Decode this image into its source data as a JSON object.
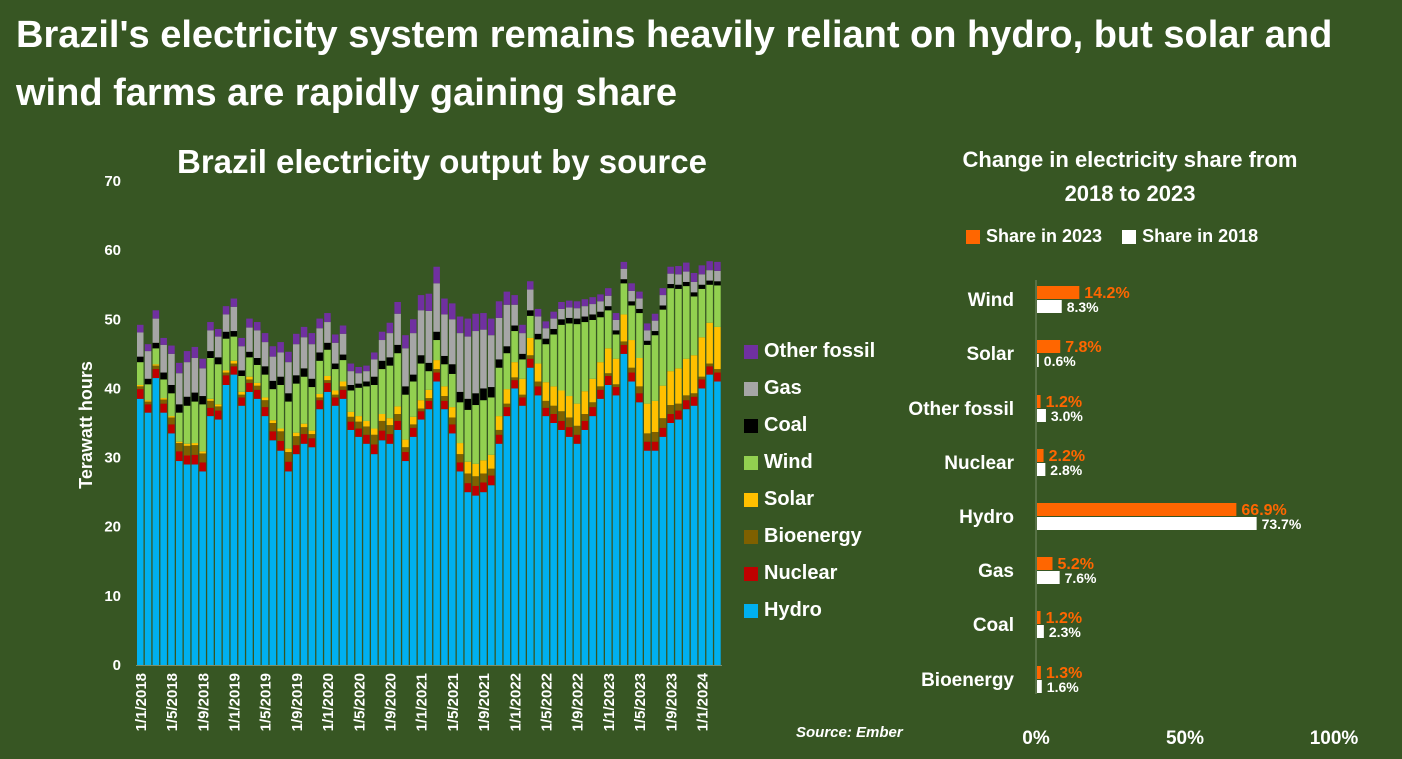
{
  "headline": "Brazil's electricity system remains heavily reliant on hydro, but solar and wind farms are rapidly gaining share",
  "source": "Source: Ember",
  "colors": {
    "background": "#375623",
    "Hydro": "#00b0f0",
    "Nuclear": "#c00000",
    "Bioenergy": "#7f6000",
    "Solar": "#ffc000",
    "Wind": "#92d050",
    "Coal": "#000000",
    "Gas": "#a6a6a6",
    "Other fossil": "#7030a0",
    "share_2023": "#ff6600",
    "share_2018": "#ffffff"
  },
  "chart_data": [
    {
      "type": "stacked-bar",
      "title": "Brazil electricity output by source",
      "xlabel": "",
      "ylabel": "Terawatt hours",
      "ylim": [
        0,
        70
      ],
      "yticks": [
        "0",
        "10",
        "20",
        "30",
        "40",
        "50",
        "60",
        "70"
      ],
      "x_tick_labels": [
        "1/1/2018",
        "1/5/2018",
        "1/9/2018",
        "1/1/2019",
        "1/5/2019",
        "1/9/2019",
        "1/1/2020",
        "1/5/2020",
        "1/9/2020",
        "1/1/2021",
        "1/5/2021",
        "1/9/2021",
        "1/1/2022",
        "1/5/2022",
        "1/9/2022",
        "1/1/2023",
        "1/5/2023",
        "1/9/2023",
        "1/1/2024"
      ],
      "legend": [
        "Other fossil",
        "Gas",
        "Coal",
        "Wind",
        "Solar",
        "Bioenergy",
        "Nuclear",
        "Hydro"
      ],
      "legend_position": "right",
      "months": [
        "2018-01",
        "2018-02",
        "2018-03",
        "2018-04",
        "2018-05",
        "2018-06",
        "2018-07",
        "2018-08",
        "2018-09",
        "2018-10",
        "2018-11",
        "2018-12",
        "2019-01",
        "2019-02",
        "2019-03",
        "2019-04",
        "2019-05",
        "2019-06",
        "2019-07",
        "2019-08",
        "2019-09",
        "2019-10",
        "2019-11",
        "2019-12",
        "2020-01",
        "2020-02",
        "2020-03",
        "2020-04",
        "2020-05",
        "2020-06",
        "2020-07",
        "2020-08",
        "2020-09",
        "2020-10",
        "2020-11",
        "2020-12",
        "2021-01",
        "2021-02",
        "2021-03",
        "2021-04",
        "2021-05",
        "2021-06",
        "2021-07",
        "2021-08",
        "2021-09",
        "2021-10",
        "2021-11",
        "2021-12",
        "2022-01",
        "2022-02",
        "2022-03",
        "2022-04",
        "2022-05",
        "2022-06",
        "2022-07",
        "2022-08",
        "2022-09",
        "2022-10",
        "2022-11",
        "2022-12",
        "2023-01",
        "2023-02",
        "2023-03",
        "2023-04",
        "2023-05",
        "2023-06",
        "2023-07",
        "2023-08",
        "2023-09",
        "2023-10",
        "2023-11",
        "2023-12",
        "2024-01",
        "2024-02",
        "2024-03"
      ],
      "series": [
        {
          "name": "Hydro",
          "values": [
            38.5,
            36.5,
            41.5,
            36.5,
            33.5,
            29.5,
            29.0,
            29.0,
            28.0,
            36.0,
            35.5,
            40.5,
            42.0,
            37.5,
            39.5,
            38.5,
            36.0,
            32.5,
            31.0,
            28.0,
            30.5,
            32.0,
            31.5,
            37.0,
            39.5,
            37.5,
            38.5,
            34.0,
            33.0,
            32.0,
            30.5,
            32.5,
            32.0,
            34.0,
            29.5,
            33.0,
            35.5,
            37.0,
            41.0,
            37.0,
            33.5,
            28.0,
            25.0,
            24.5,
            25.0,
            26.0,
            32.0,
            36.0,
            40.0,
            37.5,
            43.0,
            39.0,
            36.0,
            35.0,
            34.0,
            33.0,
            32.0,
            34.0,
            36.0,
            38.5,
            40.5,
            39.0,
            45.0,
            41.0,
            38.0,
            31.0,
            31.0,
            33.0,
            35.0,
            35.5,
            37.0,
            37.5,
            40.0,
            42.0,
            41.0
          ]
        },
        {
          "name": "Nuclear",
          "values": [
            1.4,
            1.2,
            1.3,
            1.3,
            1.3,
            1.4,
            1.3,
            1.4,
            1.3,
            1.2,
            1.3,
            1.4,
            1.2,
            1.2,
            1.3,
            1.3,
            1.3,
            1.3,
            1.4,
            1.4,
            1.3,
            1.4,
            1.3,
            1.3,
            1.3,
            1.2,
            1.3,
            1.2,
            1.2,
            1.3,
            1.4,
            1.4,
            1.4,
            1.3,
            1.3,
            1.3,
            1.2,
            1.2,
            1.3,
            1.2,
            1.3,
            1.3,
            1.3,
            1.4,
            1.4,
            1.4,
            1.3,
            1.3,
            1.2,
            1.2,
            1.3,
            1.3,
            1.2,
            1.3,
            1.3,
            1.4,
            1.3,
            1.3,
            1.3,
            1.3,
            1.3,
            1.2,
            1.3,
            1.3,
            1.3,
            1.3,
            1.3,
            1.3,
            1.3,
            1.3,
            1.3,
            1.3,
            1.3,
            1.2,
            1.3
          ]
        },
        {
          "name": "Bioenergy",
          "values": [
            0.4,
            0.4,
            0.5,
            0.6,
            1.0,
            1.2,
            1.4,
            1.4,
            1.3,
            1.0,
            0.6,
            0.4,
            0.4,
            0.4,
            0.5,
            0.6,
            1.0,
            1.2,
            1.4,
            1.4,
            1.3,
            1.0,
            0.6,
            0.4,
            0.4,
            0.4,
            0.5,
            0.7,
            1.0,
            1.2,
            1.4,
            1.4,
            1.3,
            1.0,
            0.7,
            0.5,
            0.4,
            0.4,
            0.5,
            0.7,
            1.0,
            1.2,
            1.4,
            1.4,
            1.3,
            1.0,
            0.7,
            0.5,
            0.4,
            0.4,
            0.5,
            0.7,
            1.0,
            1.2,
            1.4,
            1.4,
            1.3,
            1.0,
            0.7,
            0.5,
            0.4,
            0.4,
            0.5,
            0.7,
            1.0,
            1.2,
            1.4,
            1.4,
            1.3,
            1.0,
            0.7,
            0.5,
            0.4,
            0.4,
            0.5
          ]
        },
        {
          "name": "Solar",
          "values": [
            0.2,
            0.2,
            0.2,
            0.2,
            0.2,
            0.2,
            0.3,
            0.3,
            0.3,
            0.3,
            0.3,
            0.3,
            0.4,
            0.4,
            0.4,
            0.4,
            0.4,
            0.4,
            0.4,
            0.5,
            0.5,
            0.5,
            0.5,
            0.5,
            0.6,
            0.6,
            0.7,
            0.7,
            0.8,
            0.8,
            0.9,
            1.0,
            1.0,
            1.1,
            1.1,
            1.1,
            1.2,
            1.2,
            1.3,
            1.4,
            1.5,
            1.6,
            1.7,
            1.8,
            1.9,
            2.0,
            2.0,
            2.1,
            2.2,
            2.3,
            2.5,
            2.6,
            2.7,
            2.8,
            3.0,
            3.1,
            3.2,
            3.3,
            3.4,
            3.5,
            3.6,
            3.7,
            3.9,
            4.0,
            4.1,
            4.3,
            4.5,
            4.7,
            4.9,
            5.1,
            5.3,
            5.5,
            5.7,
            5.9,
            6.1
          ]
        },
        {
          "name": "Wind",
          "values": [
            3.3,
            2.3,
            2.3,
            2.7,
            3.3,
            4.2,
            5.5,
            6.0,
            6.8,
            5.9,
            5.8,
            4.6,
            3.5,
            2.3,
            2.8,
            2.6,
            3.3,
            4.5,
            6.3,
            6.8,
            7.1,
            6.8,
            6.3,
            4.8,
            3.8,
            3.1,
            3.1,
            3.1,
            4.1,
            5.0,
            6.3,
            6.5,
            7.6,
            7.7,
            6.5,
            5.1,
            5.3,
            2.7,
            2.9,
            3.2,
            4.8,
            5.9,
            7.5,
            8.5,
            8.7,
            8.3,
            7.0,
            5.2,
            4.5,
            2.8,
            3.2,
            3.5,
            5.5,
            7.5,
            9.5,
            10.5,
            11.5,
            10.0,
            8.5,
            6.5,
            5.5,
            3.5,
            4.5,
            5.0,
            6.5,
            8.5,
            9.5,
            11.0,
            12.0,
            11.5,
            10.5,
            8.5,
            7.0,
            5.5,
            6.0
          ]
        },
        {
          "name": "Coal",
          "values": [
            0.8,
            0.8,
            0.8,
            1.0,
            1.2,
            1.2,
            1.3,
            1.3,
            1.2,
            1.0,
            1.0,
            1.0,
            0.8,
            0.8,
            0.8,
            1.0,
            1.2,
            1.2,
            1.2,
            1.2,
            1.2,
            1.2,
            1.2,
            1.2,
            1.0,
            0.8,
            0.8,
            0.8,
            0.6,
            0.7,
            1.2,
            1.2,
            1.2,
            1.2,
            1.2,
            1.0,
            1.2,
            1.2,
            1.2,
            1.2,
            1.4,
            1.5,
            1.6,
            1.7,
            1.7,
            1.5,
            1.2,
            1.0,
            0.8,
            0.8,
            0.8,
            0.8,
            0.8,
            0.8,
            0.8,
            0.8,
            0.8,
            0.8,
            0.8,
            0.8,
            0.6,
            0.6,
            0.6,
            0.6,
            0.6,
            0.6,
            0.6,
            0.6,
            0.6,
            0.6,
            0.6,
            0.6,
            0.6,
            0.6,
            0.6
          ]
        },
        {
          "name": "Gas",
          "values": [
            3.5,
            4.0,
            3.5,
            4.0,
            4.5,
            4.5,
            5.0,
            5.0,
            4.0,
            3.0,
            3.0,
            2.5,
            3.5,
            3.5,
            3.5,
            4.0,
            3.5,
            3.5,
            3.5,
            4.5,
            4.5,
            4.5,
            5.0,
            3.5,
            3.0,
            3.0,
            3.0,
            2.0,
            1.5,
            1.5,
            2.5,
            3.0,
            3.5,
            4.5,
            5.5,
            6.0,
            6.5,
            7.5,
            7.0,
            6.0,
            6.5,
            8.5,
            9.0,
            9.0,
            8.5,
            7.5,
            6.0,
            6.0,
            3.0,
            3.0,
            3.0,
            2.5,
            1.5,
            1.5,
            1.5,
            1.5,
            1.5,
            1.5,
            1.5,
            1.5,
            1.5,
            1.5,
            1.5,
            1.5,
            1.5,
            1.5,
            1.5,
            1.5,
            1.5,
            1.5,
            1.5,
            1.5,
            1.5,
            1.5,
            1.5
          ]
        },
        {
          "name": "Other fossil",
          "values": [
            1.1,
            1.0,
            1.2,
            1.0,
            1.2,
            1.5,
            1.6,
            1.6,
            1.4,
            1.2,
            1.1,
            1.2,
            1.2,
            1.2,
            1.3,
            1.2,
            1.3,
            1.5,
            1.5,
            1.5,
            1.5,
            1.5,
            1.6,
            1.4,
            1.3,
            1.2,
            1.2,
            1.1,
            0.9,
            0.8,
            1.0,
            1.2,
            1.5,
            1.7,
            1.9,
            2.0,
            2.2,
            2.5,
            2.4,
            2.3,
            2.3,
            2.4,
            2.6,
            2.5,
            2.4,
            2.4,
            2.4,
            1.9,
            1.4,
            1.2,
            1.2,
            1.1,
            1.0,
            1.0,
            1.0,
            1.0,
            1.0,
            1.0,
            1.0,
            1.0,
            1.1,
            1.0,
            1.0,
            1.1,
            1.0,
            1.0,
            1.0,
            1.0,
            1.0,
            1.2,
            1.3,
            1.3,
            1.3,
            1.3,
            1.3
          ]
        }
      ]
    },
    {
      "type": "bar",
      "orientation": "horizontal",
      "title": "Change in electricity share from 2018 to 2023",
      "categories": [
        "Wind",
        "Solar",
        "Other fossil",
        "Nuclear",
        "Hydro",
        "Gas",
        "Coal",
        "Bioenergy"
      ],
      "series": [
        {
          "name": "Share in 2023",
          "values": [
            14.2,
            7.8,
            1.2,
            2.2,
            66.9,
            5.2,
            1.2,
            1.3
          ],
          "labels": [
            "14.2%",
            "7.8%",
            "1.2%",
            "2.2%",
            "66.9%",
            "5.2%",
            "1.2%",
            "1.3%"
          ]
        },
        {
          "name": "Share in 2018",
          "values": [
            8.3,
            0.6,
            3.0,
            2.8,
            73.7,
            7.6,
            2.3,
            1.6
          ],
          "labels": [
            "8.3%",
            "0.6%",
            "3.0%",
            "2.8%",
            "73.7%",
            "7.6%",
            "2.3%",
            "1.6%"
          ]
        }
      ],
      "xlim": [
        0,
        100
      ],
      "xticks": [
        "0%",
        "50%",
        "100%"
      ],
      "legend_position": "top"
    }
  ]
}
